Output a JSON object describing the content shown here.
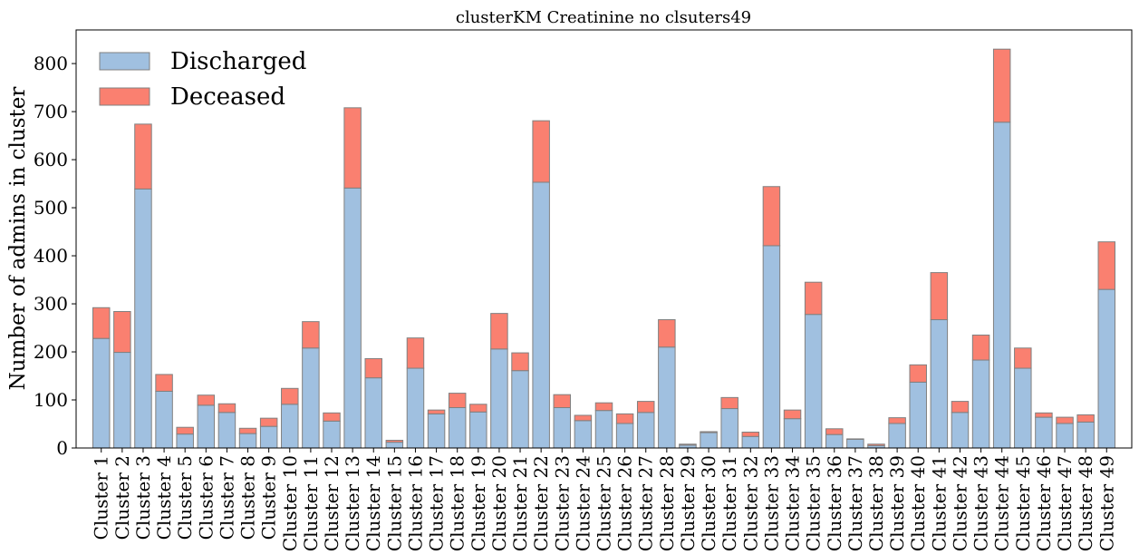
{
  "chart_data": {
    "type": "bar",
    "stacked": true,
    "title": "clusterKM Creatinine no clsuters49",
    "xlabel": "",
    "ylabel": "Number of admins in cluster",
    "ylim": [
      0,
      870
    ],
    "yticks": [
      0,
      100,
      200,
      300,
      400,
      500,
      600,
      700,
      800
    ],
    "legend_position": "top-left",
    "grid": false,
    "categories": [
      "Cluster 1",
      "Cluster 2",
      "Cluster 3",
      "Cluster 4",
      "Cluster 5",
      "Cluster 6",
      "Cluster 7",
      "Cluster 8",
      "Cluster 9",
      "Cluster 10",
      "Cluster 11",
      "Cluster 12",
      "Cluster 13",
      "Cluster 14",
      "Cluster 15",
      "Cluster 16",
      "Cluster 17",
      "Cluster 18",
      "Cluster 19",
      "Cluster 20",
      "Cluster 21",
      "Cluster 22",
      "Cluster 23",
      "Cluster 24",
      "Cluster 25",
      "Cluster 26",
      "Cluster 27",
      "Cluster 28",
      "Cluster 29",
      "Cluster 30",
      "Cluster 31",
      "Cluster 32",
      "Cluster 33",
      "Cluster 34",
      "Cluster 35",
      "Cluster 36",
      "Cluster 37",
      "Cluster 38",
      "Cluster 39",
      "Cluster 40",
      "Cluster 41",
      "Cluster 42",
      "Cluster 43",
      "Cluster 44",
      "Cluster 45",
      "Cluster 46",
      "Cluster 47",
      "Cluster 48",
      "Cluster 49"
    ],
    "series": [
      {
        "name": "Discharged",
        "color": "#a0c0e0",
        "values": [
          228,
          199,
          539,
          118,
          29,
          89,
          74,
          30,
          45,
          91,
          208,
          56,
          541,
          146,
          12,
          166,
          71,
          84,
          75,
          206,
          161,
          553,
          84,
          57,
          78,
          51,
          74,
          210,
          6,
          32,
          82,
          24,
          421,
          61,
          278,
          28,
          18,
          5,
          51,
          137,
          267,
          74,
          183,
          678,
          166,
          64,
          51,
          54,
          330
        ]
      },
      {
        "name": "Deceased",
        "color": "#fa8070",
        "values": [
          64,
          85,
          135,
          35,
          14,
          21,
          18,
          11,
          17,
          33,
          55,
          17,
          167,
          40,
          4,
          63,
          8,
          30,
          16,
          74,
          37,
          128,
          27,
          11,
          16,
          20,
          23,
          57,
          2,
          2,
          23,
          9,
          123,
          18,
          67,
          12,
          1,
          3,
          12,
          36,
          98,
          23,
          52,
          152,
          42,
          9,
          13,
          15,
          99
        ]
      }
    ]
  }
}
